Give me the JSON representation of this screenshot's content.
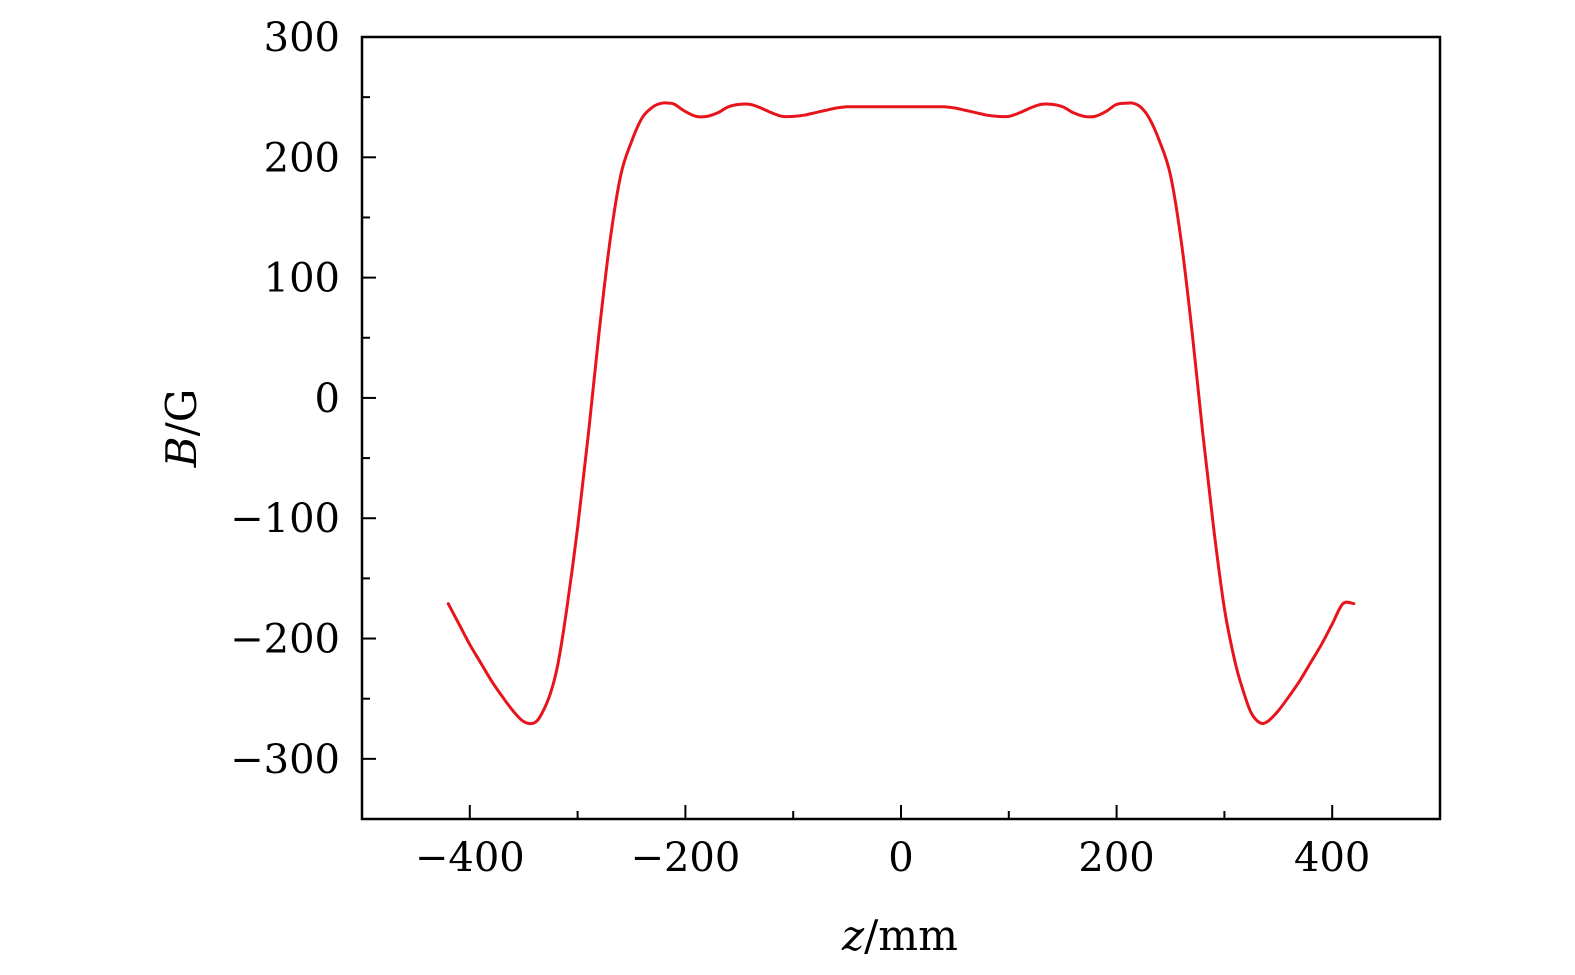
{
  "chart_data": {
    "type": "line",
    "title": "",
    "xlabel": {
      "symbol": "z",
      "unit": "/mm"
    },
    "ylabel": {
      "symbol": "B",
      "unit": "/G"
    },
    "xlim": [
      -500,
      500
    ],
    "ylim": [
      -350,
      300
    ],
    "x_ticks": [
      {
        "value": -400,
        "label": "−400"
      },
      {
        "value": -200,
        "label": "−200"
      },
      {
        "value": 0,
        "label": "0"
      },
      {
        "value": 200,
        "label": "200"
      },
      {
        "value": 400,
        "label": "400"
      }
    ],
    "x_minor_ticks": [
      -300,
      -100,
      100,
      300
    ],
    "y_ticks": [
      {
        "value": 300,
        "label": "300"
      },
      {
        "value": 200,
        "label": "200"
      },
      {
        "value": 100,
        "label": "100"
      },
      {
        "value": 0,
        "label": "0"
      },
      {
        "value": -100,
        "label": "−100"
      },
      {
        "value": -200,
        "label": "−200"
      },
      {
        "value": -300,
        "label": "−300"
      }
    ],
    "y_minor_ticks": [
      250,
      150,
      50,
      -50,
      -150,
      -250
    ],
    "grid": false,
    "series": [
      {
        "color": "#e8141c",
        "x": [
          -420,
          -410,
          -400,
          -390,
          -380,
          -370,
          -360,
          -350,
          -340,
          -333,
          -325,
          -318,
          -310,
          -300,
          -290,
          -280,
          -270,
          -260,
          -250,
          -240,
          -230,
          -222,
          -215,
          -210,
          -200,
          -190,
          -180,
          -170,
          -160,
          -150,
          -140,
          -130,
          -120,
          -110,
          -100,
          -90,
          -80,
          -70,
          -60,
          -50,
          -40,
          -30,
          -20,
          -10,
          0,
          10,
          20,
          30,
          40,
          50,
          60,
          70,
          80,
          90,
          100,
          110,
          120,
          130,
          140,
          150,
          160,
          170,
          180,
          190,
          200,
          210,
          215,
          222,
          230,
          240,
          250,
          260,
          270,
          280,
          290,
          300,
          310,
          318,
          325,
          333,
          340,
          350,
          360,
          370,
          380,
          390,
          400,
          410,
          420
        ],
        "y": [
          -171,
          -188,
          -205,
          -220,
          -235,
          -248,
          -260,
          -269,
          -270,
          -262,
          -245,
          -220,
          -175,
          -108,
          -30,
          55,
          130,
          185,
          213,
          233,
          242,
          245,
          245,
          244,
          238,
          234,
          234,
          237,
          242,
          244,
          244,
          241,
          237,
          234,
          234,
          235,
          237,
          239,
          241,
          242,
          242,
          242,
          242,
          242,
          242,
          242,
          242,
          242,
          242,
          241,
          239,
          237,
          235,
          234,
          234,
          237,
          241,
          244,
          244,
          242,
          237,
          234,
          234,
          238,
          244,
          245,
          245,
          242,
          233,
          213,
          185,
          130,
          55,
          -30,
          -108,
          -175,
          -220,
          -245,
          -262,
          -270,
          -269,
          -260,
          -248,
          -235,
          -220,
          -205,
          -188,
          -171,
          -171
        ]
      }
    ]
  }
}
